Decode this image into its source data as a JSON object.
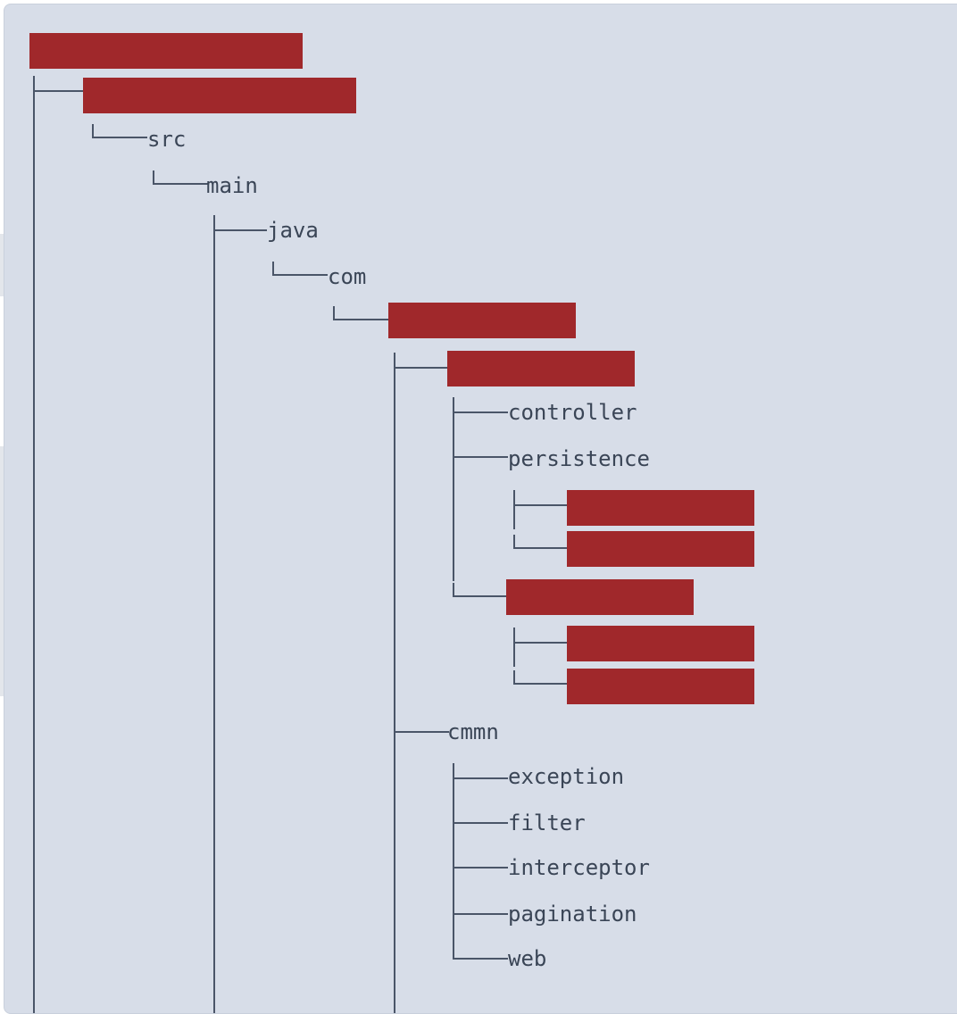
{
  "colors": {
    "panel_bg": "#d7dde8",
    "line": "#4a5568",
    "text": "#3a4556",
    "redaction": "#a0282b"
  },
  "tree": {
    "src": "src",
    "main": "main",
    "java": "java",
    "com": "com",
    "controller": "controller",
    "persistence": "persistence",
    "cmmn": "cmmn",
    "exception": "exception",
    "filter": "filter",
    "interceptor": "interceptor",
    "pagination": "pagination",
    "web": "web"
  }
}
